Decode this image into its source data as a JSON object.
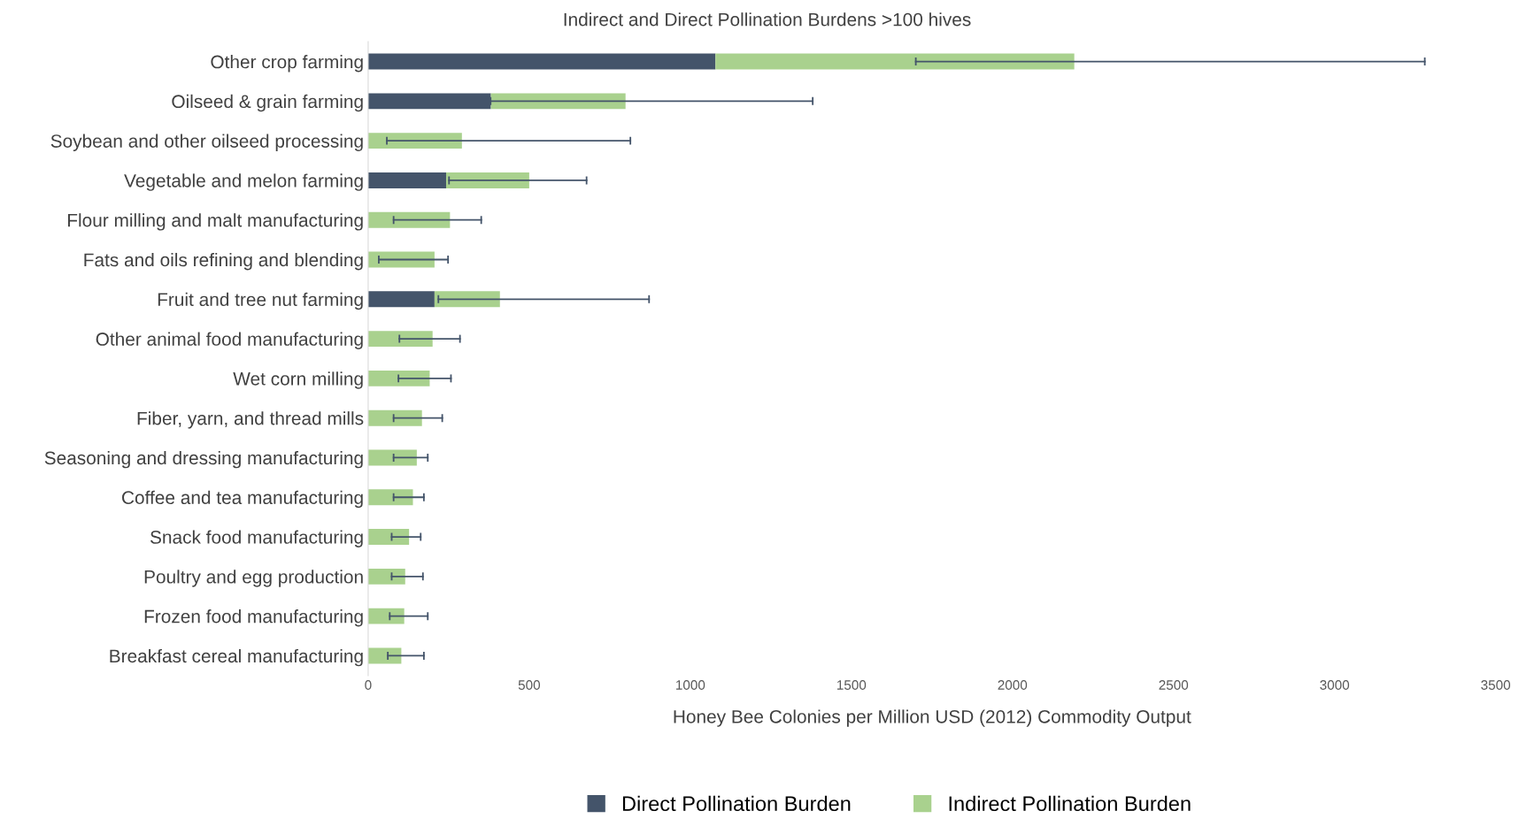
{
  "chart_data": {
    "type": "bar",
    "orientation": "horizontal",
    "stacked": true,
    "title": "Indirect and Direct Pollination Burdens >100 hives",
    "xlabel": "Honey Bee Colonies per Million USD (2012) Commodity Output",
    "categories": [
      "Other crop farming",
      "Oilseed & grain farming",
      "Soybean and other oilseed processing",
      "Vegetable and melon farming",
      "Flour milling and malt manufacturing",
      "Fats and oils refining and blending",
      "Fruit and tree nut farming",
      "Other animal food manufacturing",
      "Wet corn milling",
      "Fiber, yarn, and thread mills",
      "Seasoning and dressing manufacturing",
      "Coffee and tea manufacturing",
      "Snack food manufacturing",
      "Poultry and egg production",
      "Frozen food manufacturing",
      "Breakfast cereal manufacturing"
    ],
    "series": [
      {
        "name": "Direct Pollination Burden",
        "color": "#44546a",
        "values": [
          1078,
          381,
          null,
          242,
          null,
          null,
          206,
          null,
          null,
          null,
          null,
          null,
          null,
          null,
          null,
          null
        ]
      },
      {
        "name": "Indirect Pollination Burden",
        "color": "#a9d18e",
        "values": [
          1114,
          418,
          291,
          258,
          254,
          206,
          203,
          200,
          191,
          167,
          151,
          139,
          127,
          115,
          112,
          103
        ],
        "errors": [
          [
            1700,
            3280
          ],
          [
            380,
            1380
          ],
          [
            58,
            814
          ],
          [
            251,
            678
          ],
          [
            79,
            351
          ],
          [
            33,
            248
          ],
          [
            218,
            872
          ],
          [
            97,
            285
          ],
          [
            94,
            257
          ],
          [
            79,
            230
          ],
          [
            79,
            185
          ],
          [
            79,
            173
          ],
          [
            73,
            163
          ],
          [
            73,
            170
          ],
          [
            67,
            185
          ],
          [
            61,
            173
          ]
        ]
      }
    ],
    "xlim": [
      0,
      3500
    ],
    "xticks": [
      0,
      500,
      1000,
      1500,
      2000,
      2500,
      3000,
      3500
    ],
    "grid": false,
    "legend": "bottom"
  }
}
